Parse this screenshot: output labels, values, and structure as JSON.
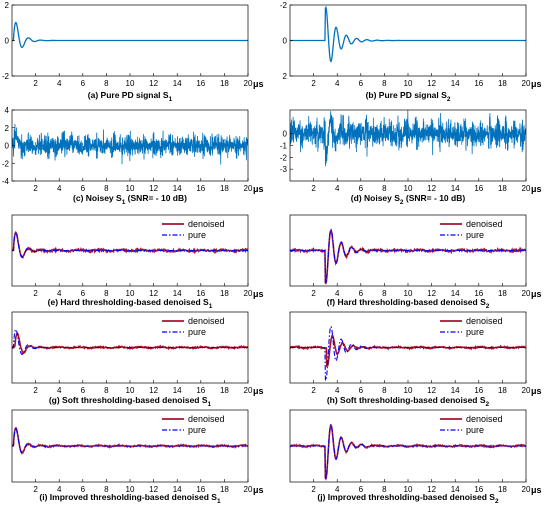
{
  "colors": {
    "signal": "#0072BD",
    "denoised": "#A2142F",
    "pure": "#0000FF",
    "axis": "#000000"
  },
  "legend_labels": {
    "denoised": "denoised",
    "pure": "pure"
  },
  "chart_data": [
    {
      "type": "line",
      "id": "a",
      "caption": {
        "prefix": "(a) Pure PD signal S",
        "sub": "1",
        "suffix": ""
      },
      "signal": "S1",
      "variant": "pure",
      "legend": false,
      "xlim": [
        0,
        20
      ],
      "xticks": [
        2,
        4,
        6,
        8,
        10,
        12,
        14,
        16,
        18,
        20
      ],
      "xunit": "μs",
      "ylim": [
        -2,
        2
      ],
      "yticks": [
        2,
        0,
        -2
      ],
      "yreversed": false
    },
    {
      "type": "line",
      "id": "b",
      "caption": {
        "prefix": "(b) Pure PD signal S",
        "sub": "2",
        "suffix": ""
      },
      "signal": "S2",
      "variant": "pure",
      "legend": false,
      "xlim": [
        0,
        20
      ],
      "xticks": [
        2,
        4,
        6,
        8,
        10,
        12,
        14,
        16,
        18,
        20
      ],
      "xunit": "μs",
      "ylim": [
        -2,
        2
      ],
      "yticks": [
        -2,
        0,
        2
      ],
      "yreversed": true
    },
    {
      "type": "line",
      "id": "c",
      "caption": {
        "prefix": "(c) Noisey S",
        "sub": "1",
        "suffix": " (SNR= - 10 dB)"
      },
      "signal": "S1",
      "variant": "noisy",
      "noise_amplitude": 1.15,
      "legend": false,
      "xlim": [
        0,
        20
      ],
      "xticks": [
        2,
        4,
        6,
        8,
        10,
        12,
        14,
        16,
        18,
        20
      ],
      "xunit": "μs",
      "ylim": [
        -4,
        4
      ],
      "yticks": [
        4,
        2,
        0,
        -2,
        -4
      ],
      "yreversed": false
    },
    {
      "type": "line",
      "id": "d",
      "caption": {
        "prefix": "(d) Noisey S",
        "sub": "2",
        "suffix": " (SNR= - 10 dB)"
      },
      "signal": "S2",
      "variant": "noisy",
      "noise_amplitude": 1.1,
      "legend": false,
      "xlim": [
        0,
        20
      ],
      "xticks": [
        2,
        4,
        6,
        8,
        10,
        12,
        14,
        16,
        18,
        20
      ],
      "xunit": "μs",
      "ylim": [
        -4,
        2
      ],
      "yticks": [
        0,
        -1,
        -2,
        -3
      ],
      "yreversed": false
    },
    {
      "type": "line",
      "id": "e",
      "caption": {
        "prefix": "(e) Hard thresholding-based denoised S",
        "sub": "1",
        "suffix": ""
      },
      "signal": "S1",
      "variant": "hard",
      "legend": true,
      "xlim": [
        0,
        20
      ],
      "xticks": [
        2,
        4,
        6,
        8,
        10,
        12,
        14,
        16,
        18,
        20
      ],
      "xunit": "μs",
      "ylim": [
        -2,
        2
      ],
      "yticks": [],
      "yreversed": false
    },
    {
      "type": "line",
      "id": "f",
      "caption": {
        "prefix": "(f) Hard thresholding-based denoised S",
        "sub": "2",
        "suffix": ""
      },
      "signal": "S2",
      "variant": "hard",
      "legend": true,
      "xlim": [
        0,
        20
      ],
      "xticks": [
        2,
        4,
        6,
        8,
        10,
        12,
        14,
        16,
        18,
        20
      ],
      "xunit": "μs",
      "ylim": [
        -2,
        2
      ],
      "yticks": [],
      "yreversed": false
    },
    {
      "type": "line",
      "id": "g",
      "caption": {
        "prefix": "(g) Soft thresholding-based denoised S",
        "sub": "1",
        "suffix": ""
      },
      "signal": "S1",
      "variant": "soft",
      "legend": true,
      "xlim": [
        0,
        20
      ],
      "xticks": [
        2,
        4,
        6,
        8,
        10,
        12,
        14,
        16,
        18,
        20
      ],
      "xunit": "μs",
      "ylim": [
        -2,
        2
      ],
      "yticks": [],
      "yreversed": false
    },
    {
      "type": "line",
      "id": "h",
      "caption": {
        "prefix": "(h) Soft thresholding-based denoised S",
        "sub": "2",
        "suffix": ""
      },
      "signal": "S2",
      "variant": "soft",
      "legend": true,
      "xlim": [
        0,
        20
      ],
      "xticks": [
        2,
        4,
        6,
        8,
        10,
        12,
        14,
        16,
        18,
        20
      ],
      "xunit": "μs",
      "ylim": [
        -2,
        2
      ],
      "yticks": [],
      "yreversed": false
    },
    {
      "type": "line",
      "id": "i",
      "caption": {
        "prefix": "(i) Improved thresholding-based denoised S",
        "sub": "1",
        "suffix": ""
      },
      "signal": "S1",
      "variant": "improved",
      "legend": true,
      "xlim": [
        0,
        20
      ],
      "xticks": [
        2,
        4,
        6,
        8,
        10,
        12,
        14,
        16,
        18,
        20
      ],
      "xunit": "μs",
      "ylim": [
        -2,
        2
      ],
      "yticks": [],
      "yreversed": false
    },
    {
      "type": "line",
      "id": "j",
      "caption": {
        "prefix": "(j) Improved thresholding-based denoised S",
        "sub": "2",
        "suffix": ""
      },
      "signal": "S2",
      "variant": "improved",
      "legend": true,
      "xlim": [
        0,
        20
      ],
      "xticks": [
        2,
        4,
        6,
        8,
        10,
        12,
        14,
        16,
        18,
        20
      ],
      "xunit": "μs",
      "ylim": [
        -2,
        2
      ],
      "yticks": [],
      "yreversed": false
    }
  ]
}
